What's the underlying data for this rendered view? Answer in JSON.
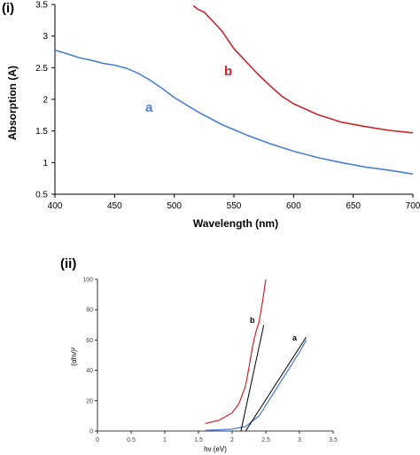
{
  "figure": {
    "panel_labels": [
      "(i)",
      "(ii)"
    ]
  },
  "chart_data": [
    {
      "type": "line",
      "panel": "(i)",
      "xlabel": "Wavelength (nm)",
      "ylabel": "Absorption (A)",
      "xlim": [
        400,
        700
      ],
      "ylim": [
        0.5,
        3.5
      ],
      "xticks": [
        "400",
        "450",
        "500",
        "550",
        "600",
        "650",
        "700"
      ],
      "yticks": [
        "0.5",
        "1",
        "1.5",
        "2",
        "2.5",
        "3",
        "3.5"
      ],
      "grid": false,
      "series": [
        {
          "name": "a",
          "color": "#4a7fd4",
          "x": [
            400,
            410,
            420,
            430,
            440,
            450,
            460,
            470,
            480,
            490,
            500,
            520,
            540,
            560,
            580,
            600,
            620,
            640,
            660,
            680,
            700
          ],
          "y": [
            2.78,
            2.72,
            2.66,
            2.62,
            2.57,
            2.54,
            2.49,
            2.41,
            2.3,
            2.17,
            2.03,
            1.8,
            1.6,
            1.44,
            1.3,
            1.18,
            1.08,
            1.0,
            0.93,
            0.88,
            0.82
          ]
        },
        {
          "name": "b",
          "color": "#c8252b",
          "x": [
            516,
            520,
            525,
            530,
            540,
            550,
            560,
            570,
            580,
            590,
            600,
            620,
            640,
            660,
            680,
            700
          ],
          "y": [
            3.48,
            3.42,
            3.38,
            3.28,
            3.08,
            2.8,
            2.6,
            2.4,
            2.22,
            2.05,
            1.93,
            1.76,
            1.64,
            1.57,
            1.51,
            1.47
          ]
        }
      ]
    },
    {
      "type": "line",
      "panel": "(ii)",
      "xlabel": "hν (eV)",
      "ylabel": "(αhν)²",
      "xlim": [
        0,
        3.5
      ],
      "ylim": [
        0,
        100
      ],
      "xticks": [
        "0",
        "0.5",
        "1",
        "1.5",
        "2",
        "2.5",
        "3",
        "3.5"
      ],
      "yticks": [
        "0",
        "20",
        "40",
        "60",
        "80",
        "100"
      ],
      "grid": false,
      "series": [
        {
          "name": "a",
          "color": "#4a7fd4",
          "x": [
            1.6,
            1.8,
            2.0,
            2.2,
            2.4,
            2.6,
            2.8,
            3.0,
            3.1
          ],
          "y": [
            0.5,
            0.8,
            1.2,
            3,
            10,
            24,
            38,
            52,
            60
          ]
        },
        {
          "name": "b",
          "color": "#c8252b",
          "x": [
            1.6,
            1.8,
            2.0,
            2.1,
            2.2,
            2.25,
            2.3,
            2.35,
            2.4,
            2.45,
            2.5
          ],
          "y": [
            5,
            7,
            12,
            18,
            30,
            42,
            55,
            65,
            72,
            85,
            100
          ]
        }
      ],
      "tangent_lines": [
        {
          "series": "b",
          "x": [
            2.13,
            2.47
          ],
          "y": [
            0,
            70
          ],
          "color": "#000000"
        },
        {
          "series": "a",
          "x": [
            2.2,
            3.1
          ],
          "y": [
            0,
            62
          ],
          "color": "#000000"
        }
      ]
    }
  ]
}
